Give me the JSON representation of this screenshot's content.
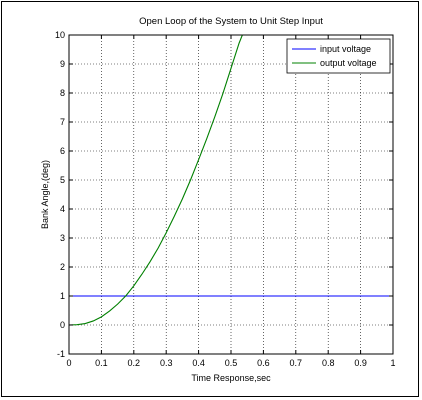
{
  "chart_data": {
    "type": "line",
    "title": "Open Loop of the System to Unit Step Input",
    "xlabel": "Time Response,sec",
    "ylabel": "Bank Angle,(deg)",
    "xlim": [
      0,
      1
    ],
    "ylim": [
      -1,
      10
    ],
    "xticks": [
      0,
      0.1,
      0.2,
      0.3,
      0.4,
      0.5,
      0.6,
      0.7,
      0.8,
      0.9,
      1
    ],
    "yticks": [
      -1,
      0,
      1,
      2,
      3,
      4,
      5,
      6,
      7,
      8,
      9,
      10
    ],
    "xtick_labels": [
      "0",
      "0.1",
      "0.2",
      "0.3",
      "0.4",
      "0.5",
      "0.6",
      "0.7",
      "0.8",
      "0.9",
      "1"
    ],
    "ytick_labels": [
      "-1",
      "0",
      "1",
      "2",
      "3",
      "4",
      "5",
      "6",
      "7",
      "8",
      "9",
      "10"
    ],
    "grid": true,
    "legend_position": "top-right",
    "series": [
      {
        "name": "input voltage",
        "color": "#0000ff",
        "x": [
          0,
          1
        ],
        "y": [
          1,
          1
        ]
      },
      {
        "name": "output voltage",
        "color": "#008000",
        "x": [
          0,
          0.025,
          0.05,
          0.075,
          0.1,
          0.125,
          0.15,
          0.175,
          0.2,
          0.225,
          0.25,
          0.275,
          0.3,
          0.325,
          0.35,
          0.375,
          0.4,
          0.425,
          0.45,
          0.475,
          0.5,
          0.525,
          0.535
        ],
        "y": [
          0,
          0.01,
          0.05,
          0.14,
          0.28,
          0.48,
          0.72,
          1.0,
          1.35,
          1.75,
          2.18,
          2.65,
          3.18,
          3.75,
          4.35,
          5.0,
          5.7,
          6.42,
          7.18,
          7.98,
          8.85,
          9.72,
          10.0
        ]
      }
    ]
  }
}
